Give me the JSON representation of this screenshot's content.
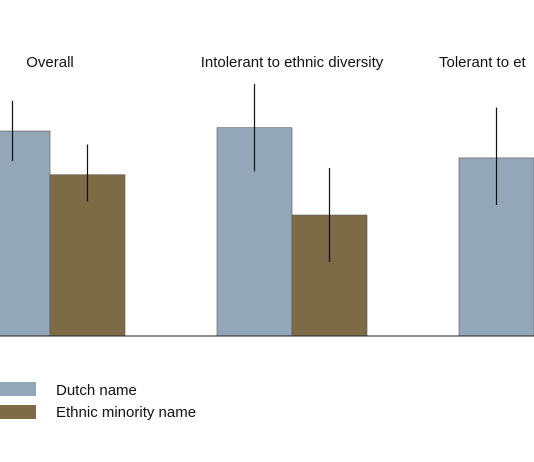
{
  "chart_data": {
    "type": "bar",
    "categories": [
      "Overall",
      "Intolerant to ethnic diversity",
      "Tolerant to et"
    ],
    "ylim": [
      0,
      1
    ],
    "grid": false,
    "legend_placement": "bottom-left",
    "series": [
      {
        "name": "Dutch name",
        "color": "#93a7b9",
        "values": [
          0.61,
          0.62,
          0.53
        ],
        "ci_low": [
          0.52,
          0.49,
          0.39
        ],
        "ci_high": [
          0.7,
          0.75,
          0.68
        ]
      },
      {
        "name": "Ethnic minority name",
        "color": "#7d6a46",
        "values": [
          0.48,
          0.36,
          null
        ],
        "ci_low": [
          0.4,
          0.22,
          null
        ],
        "ci_high": [
          0.57,
          0.5,
          null
        ]
      }
    ]
  }
}
